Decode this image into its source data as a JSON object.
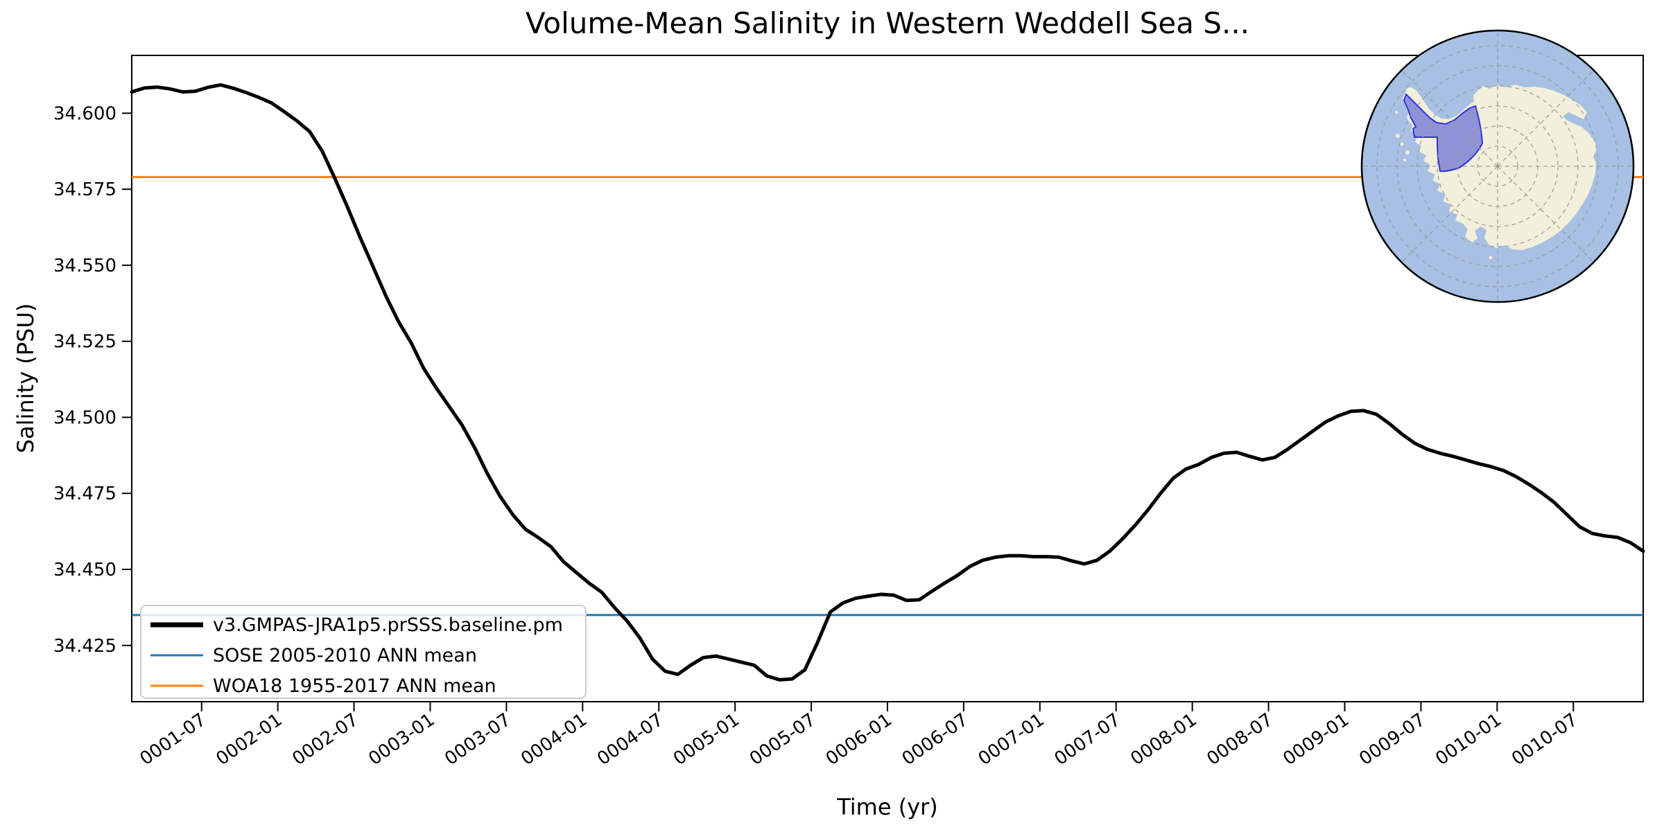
{
  "title": "Volume-Mean Salinity in Western Weddell Sea S...",
  "chart_data": {
    "type": "line",
    "title": "Volume-Mean Salinity in Western Weddell Sea S...",
    "xlabel": "Time (yr)",
    "ylabel": "Salinity (PSU)",
    "x_start": "0001-01",
    "x_frequency": "monthly",
    "xlim_months": [
      0.5,
      119.5
    ],
    "ylim": [
      34.4065,
      34.619
    ],
    "grid": false,
    "legend_position": "lower left",
    "x_ticks": {
      "months": [
        6,
        12,
        18,
        24,
        30,
        36,
        42,
        48,
        54,
        60,
        66,
        72,
        78,
        84,
        90,
        96,
        102,
        108,
        114
      ],
      "labels": [
        "0001-07",
        "0002-01",
        "0002-07",
        "0003-01",
        "0003-07",
        "0004-01",
        "0004-07",
        "0005-01",
        "0005-07",
        "0006-01",
        "0006-07",
        "0007-01",
        "0007-07",
        "0008-01",
        "0008-07",
        "0009-01",
        "0009-07",
        "0010-01",
        "0010-07"
      ]
    },
    "y_ticks": {
      "values": [
        34.6,
        34.575,
        34.55,
        34.525,
        34.5,
        34.475,
        34.45,
        34.425
      ],
      "labels": [
        "34.600",
        "34.575",
        "34.550",
        "34.525",
        "34.500",
        "34.475",
        "34.450",
        "34.425"
      ]
    },
    "series": [
      {
        "name": "v3.GMPAS-JRA1p5.prSSS.baseline.pm",
        "color": "#000000",
        "linewidth": 5,
        "values": [
          34.607,
          34.6083,
          34.6086,
          34.608,
          34.607,
          34.6072,
          34.6085,
          34.6093,
          34.6082,
          34.6068,
          34.6052,
          34.6034,
          34.6005,
          34.5975,
          34.594,
          34.5875,
          34.5785,
          34.569,
          34.559,
          34.5495,
          34.54,
          34.5315,
          34.5245,
          34.516,
          34.5095,
          34.5035,
          34.4975,
          34.49,
          34.4815,
          34.474,
          34.468,
          34.4632,
          34.4605,
          34.4575,
          34.4525,
          34.449,
          34.4455,
          34.4425,
          34.4375,
          34.433,
          34.4275,
          34.4205,
          34.4165,
          34.4155,
          34.4185,
          34.421,
          34.4215,
          34.4205,
          34.4195,
          34.4185,
          34.415,
          34.4137,
          34.414,
          34.417,
          34.426,
          34.436,
          34.439,
          34.4405,
          34.4412,
          34.4418,
          34.4415,
          34.4398,
          34.44,
          34.4428,
          34.4455,
          34.448,
          34.451,
          34.453,
          34.454,
          34.4545,
          34.4545,
          34.4542,
          34.4542,
          34.454,
          34.4528,
          34.4518,
          34.453,
          34.456,
          34.46,
          34.4645,
          34.4695,
          34.475,
          34.48,
          34.483,
          34.4845,
          34.4868,
          34.4882,
          34.4885,
          34.4872,
          34.486,
          34.4868,
          34.4895,
          34.4925,
          34.4955,
          34.4985,
          34.5005,
          34.502,
          34.5022,
          34.501,
          34.498,
          34.4945,
          34.4915,
          34.4895,
          34.4882,
          34.4872,
          34.486,
          34.4848,
          34.4838,
          34.4825,
          34.4805,
          34.478,
          34.4752,
          34.472,
          34.468,
          34.464,
          34.4618,
          34.461,
          34.4605,
          34.4588,
          34.456
        ]
      }
    ],
    "reference_lines": [
      {
        "name": "SOSE 2005-2010 ANN mean",
        "color": "#1f77b4",
        "value": 34.435,
        "linewidth": 3
      },
      {
        "name": "WOA18 1955-2017 ANN mean",
        "color": "#ff7f0e",
        "value": 34.579,
        "linewidth": 3
      }
    ]
  },
  "inset_map": {
    "description": "South polar stereographic map of Antarctica with Western Weddell Sea region highlighted",
    "colors": {
      "ocean": "#a7c0e3",
      "land": "#f2efdb",
      "region_fill_rgba": "rgba(62,70,212,0.55)",
      "region_edge": "#2e35d8",
      "graticule": "#999999",
      "border": "#000000"
    }
  }
}
